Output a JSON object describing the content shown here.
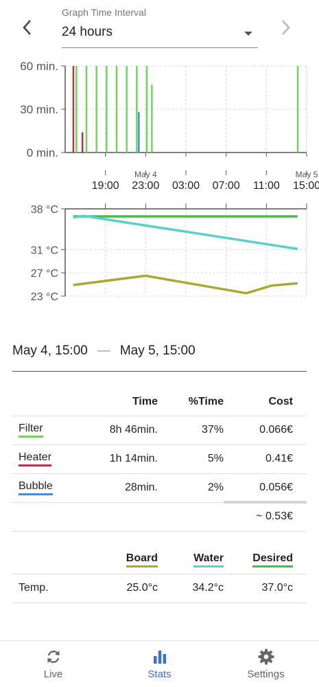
{
  "header": {
    "select_label": "Graph Time Interval",
    "select_value": "24 hours"
  },
  "usage_chart": {
    "type": "bar",
    "y_tick_labels": [
      "60 min.",
      "30 min.",
      "0 min."
    ],
    "ylim": [
      0,
      60
    ],
    "x_tick_labels": [
      "19:00",
      "23:00",
      "03:00",
      "07:00",
      "11:00",
      "15:00"
    ],
    "date_markers": [
      {
        "label": "May 4",
        "at": "23:00"
      },
      {
        "label": "May 5",
        "at": "15:00"
      }
    ],
    "series": [
      {
        "color": "#6fd65c",
        "bars": [
          {
            "t": 16.1,
            "v": 60
          },
          {
            "t": 17.1,
            "v": 60
          },
          {
            "t": 18.1,
            "v": 60
          },
          {
            "t": 19.1,
            "v": 60
          },
          {
            "t": 20.1,
            "v": 60
          },
          {
            "t": 21.1,
            "v": 60
          },
          {
            "t": 22.1,
            "v": 60
          },
          {
            "t": 23.1,
            "v": 60
          },
          {
            "t": 23.6,
            "v": 47
          },
          {
            "t": 38.1,
            "v": 60
          }
        ]
      },
      {
        "color": "#c0304a",
        "bars": [
          {
            "t": 15.8,
            "v": 60
          },
          {
            "t": 16.7,
            "v": 14
          }
        ]
      },
      {
        "color": "#3f8fe0",
        "bars": [
          {
            "t": 22.3,
            "v": 28
          }
        ]
      }
    ]
  },
  "temp_chart": {
    "type": "line",
    "y_tick_labels": [
      "38 °C",
      "31 °C",
      "27 °C",
      "23 °C"
    ],
    "y_ticks": [
      38,
      31,
      27,
      23
    ],
    "ylim": [
      23,
      38
    ],
    "series": [
      {
        "color": "#4fb84a",
        "points": [
          [
            15.8,
            36.7
          ],
          [
            38.1,
            36.7
          ]
        ]
      },
      {
        "color": "#5bd0c8",
        "points": [
          [
            15.8,
            36.5
          ],
          [
            16.8,
            36.8
          ],
          [
            38.1,
            31.1
          ]
        ]
      },
      {
        "color": "#a8a832",
        "points": [
          [
            15.8,
            24.9
          ],
          [
            23.0,
            26.5
          ],
          [
            33.0,
            23.5
          ],
          [
            35.5,
            24.8
          ],
          [
            38.1,
            25.2
          ]
        ]
      }
    ]
  },
  "range": {
    "from": "May 4, 15:00",
    "dash": "—",
    "to": "May 5, 15:00"
  },
  "stats": {
    "headers": {
      "time": "Time",
      "pct": "%Time",
      "cost": "Cost"
    },
    "rows": [
      {
        "name": "Filter",
        "time": "8h 46min.",
        "pct": "37%",
        "cost": "0.066€",
        "color": "#6fd65c"
      },
      {
        "name": "Heater",
        "time": "1h 14min.",
        "pct": "5%",
        "cost": "0.41€",
        "color": "#c0304a"
      },
      {
        "name": "Bubble",
        "time": "28min.",
        "pct": "2%",
        "cost": "0.056€",
        "color": "#3f8fe0"
      }
    ],
    "total": "~ 0.53€"
  },
  "temps": {
    "headers": [
      {
        "label": "Board",
        "color": "#a8a832"
      },
      {
        "label": "Water",
        "color": "#5bd0c8"
      },
      {
        "label": "Desired",
        "color": "#4fb84a"
      }
    ],
    "row_label": "Temp.",
    "values": [
      "25.0°c",
      "34.2°c",
      "37.0°c"
    ]
  },
  "bottom_nav": {
    "items": [
      {
        "label": "Live",
        "icon": "refresh-icon"
      },
      {
        "label": "Stats",
        "icon": "bar-chart-icon",
        "active": true
      },
      {
        "label": "Settings",
        "icon": "gear-icon"
      }
    ]
  }
}
